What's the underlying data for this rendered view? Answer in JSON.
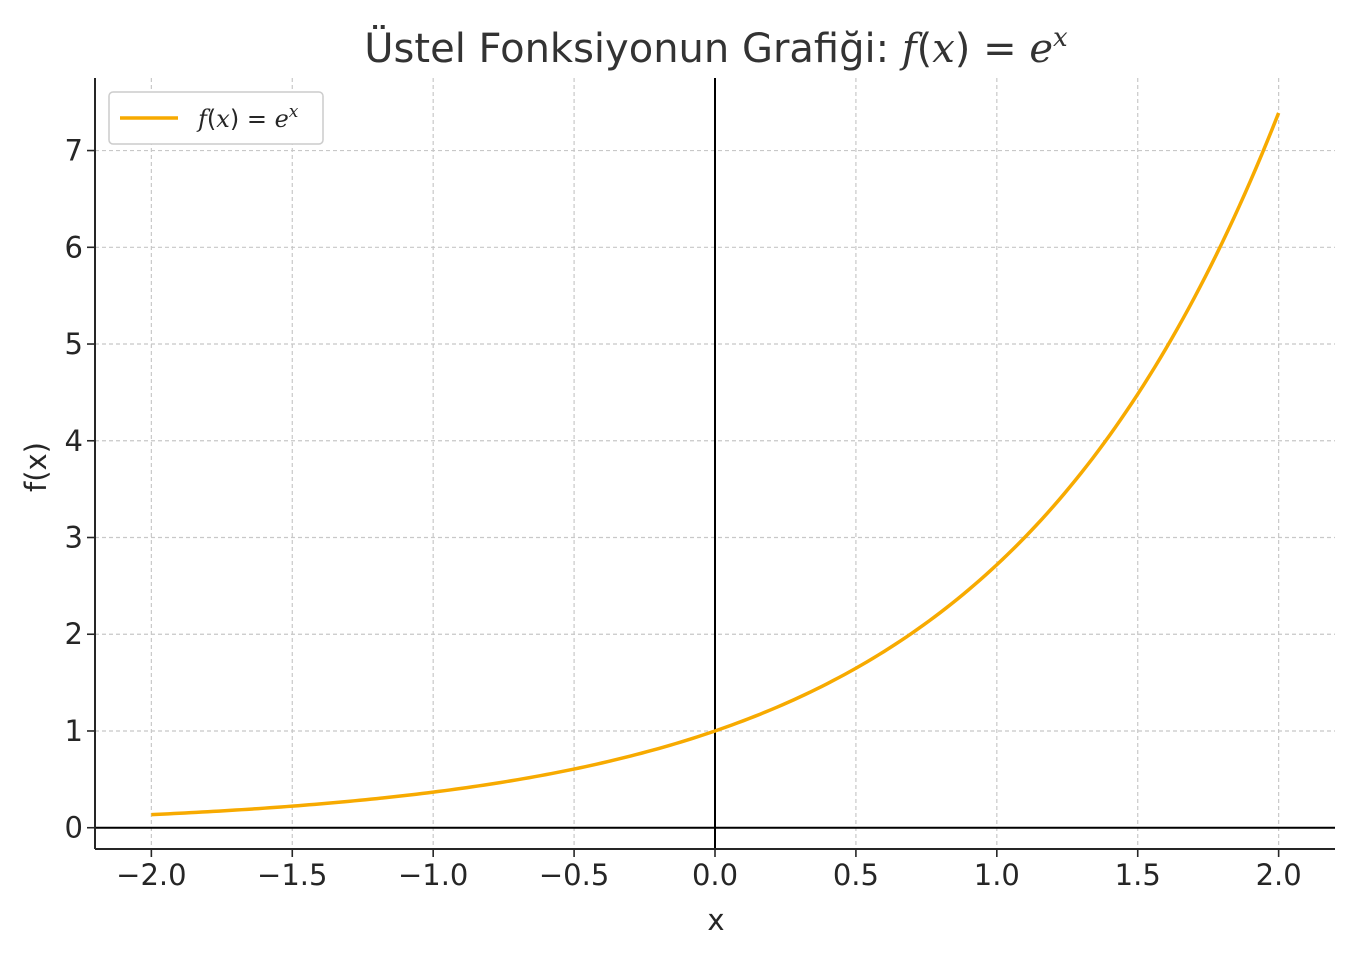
{
  "chart_data": {
    "type": "line",
    "title_text": "Üstel Fonksiyonun Grafiği: ",
    "title_math": {
      "f": "f",
      "open": "(",
      "x": "x",
      "close": ")",
      "eq": " = ",
      "e": "e",
      "sup": "x"
    },
    "xlabel": "x",
    "ylabel": "f(x)",
    "xlim": [
      -2.2,
      2.2
    ],
    "ylim": [
      -0.22,
      7.75
    ],
    "x_ticks": [
      -2.0,
      -1.5,
      -1.0,
      -0.5,
      0.0,
      0.5,
      1.0,
      1.5,
      2.0
    ],
    "x_tick_labels": [
      "−2.0",
      "−1.5",
      "−1.0",
      "−0.5",
      "0.0",
      "0.5",
      "1.0",
      "1.5",
      "2.0"
    ],
    "y_ticks": [
      0,
      1,
      2,
      3,
      4,
      5,
      6,
      7
    ],
    "y_tick_labels": [
      "0",
      "1",
      "2",
      "3",
      "4",
      "5",
      "6",
      "7"
    ],
    "grid": true,
    "legend_position": "top-left",
    "reference_lines": {
      "x": 0,
      "y": 0
    },
    "series": [
      {
        "name": "f(x) = e^x",
        "color": "#f7aa00",
        "x": [
          -2.0,
          -1.75,
          -1.5,
          -1.25,
          -1.0,
          -0.75,
          -0.5,
          -0.25,
          0.0,
          0.25,
          0.5,
          0.75,
          1.0,
          1.25,
          1.5,
          1.75,
          2.0
        ],
        "y": [
          0.135,
          0.174,
          0.223,
          0.287,
          0.368,
          0.472,
          0.607,
          0.779,
          1.0,
          1.284,
          1.649,
          2.117,
          2.718,
          3.49,
          4.482,
          5.755,
          7.389
        ]
      }
    ]
  }
}
